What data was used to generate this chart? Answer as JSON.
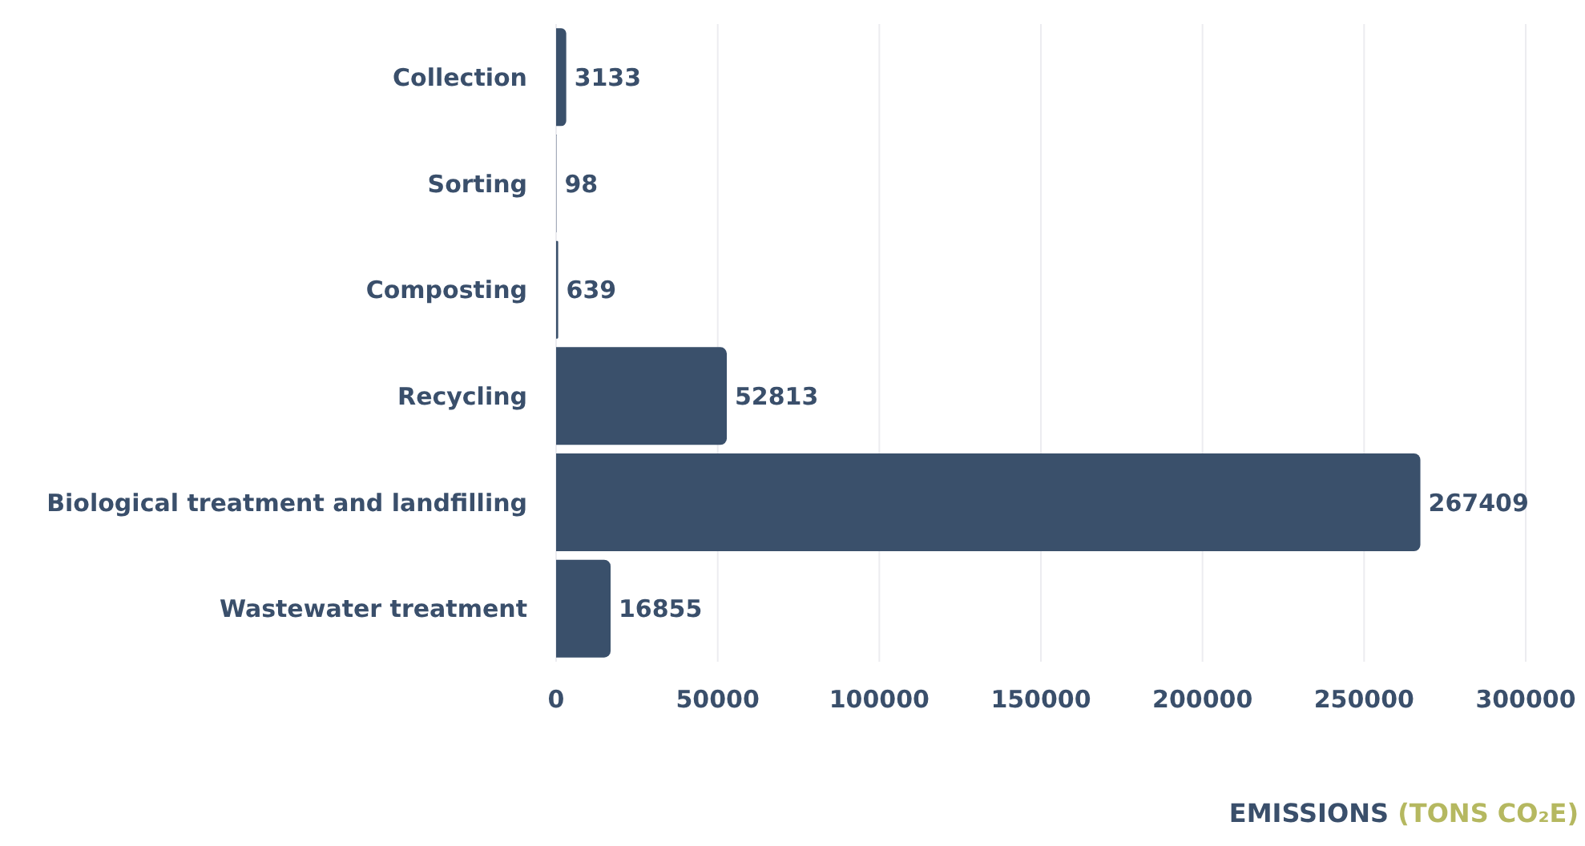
{
  "chart_data": {
    "type": "bar",
    "orientation": "horizontal",
    "xlabel": "EMISSIONS (TONS CO₂E)",
    "categories": [
      "Collection",
      "Sorting",
      "Composting",
      "Recycling",
      "Biological treatment and landfilling",
      "Wastewater treatment"
    ],
    "values": [
      3133,
      98,
      639,
      52813,
      267409,
      16855
    ],
    "color": "#3a506b",
    "xlim": [
      0,
      300000
    ],
    "xticks": [
      0,
      50000,
      100000,
      150000,
      200000,
      250000,
      300000
    ],
    "grid": "x",
    "data_labels": true
  }
}
